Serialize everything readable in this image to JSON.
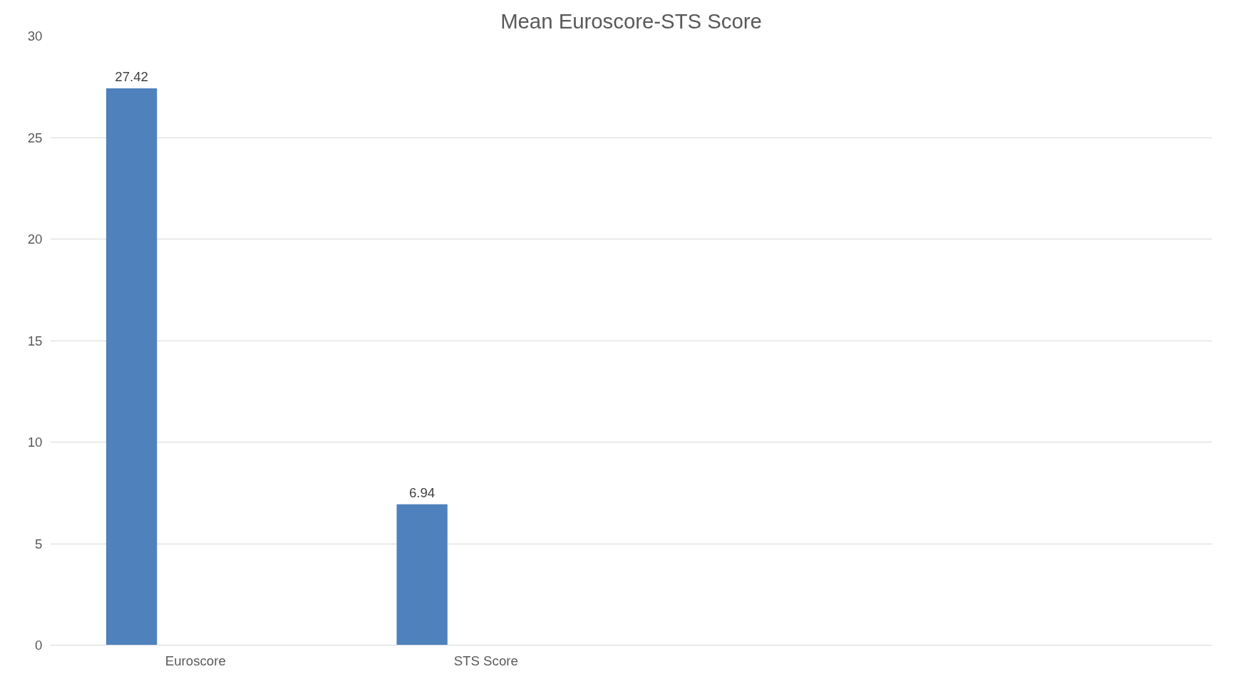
{
  "chart_data": {
    "type": "bar",
    "title": "Mean Euroscore-STS Score",
    "categories": [
      "Euroscore",
      "STS Score",
      null,
      null
    ],
    "values": [
      27.42,
      6.94,
      null,
      null
    ],
    "color": "#4f81bd",
    "ylim": [
      0,
      30
    ],
    "yticks": [
      0,
      5,
      10,
      15,
      20,
      25,
      30
    ],
    "grid": "y",
    "data_labels": true
  }
}
